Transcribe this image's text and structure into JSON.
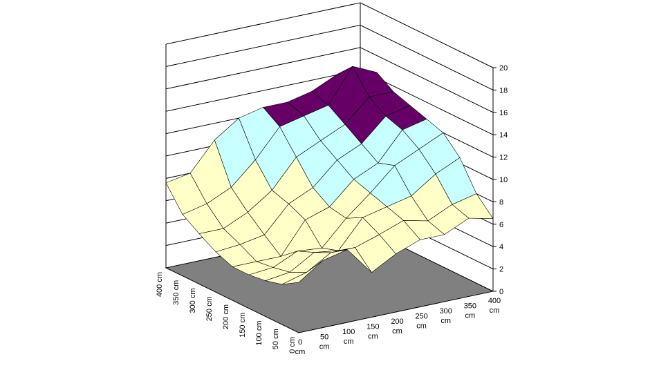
{
  "chart_data": {
    "type": "surface",
    "title": "",
    "xlabel": "",
    "ylabel": "",
    "zlabel": "",
    "x_ticks": [
      "0 cm",
      "50 cm",
      "100 cm",
      "150 cm",
      "200 cm",
      "250 cm",
      "300 cm",
      "350 cm",
      "400 cm"
    ],
    "y_ticks": [
      "0 cm",
      "50 cm",
      "100 cm",
      "150 cm",
      "200 cm",
      "250 cm",
      "300 cm",
      "350 cm",
      "400 cm"
    ],
    "z_ticks": [
      "0",
      "2",
      "4",
      "6",
      "8",
      "10",
      "12",
      "14",
      "16",
      "18",
      "20"
    ],
    "zlim": [
      0,
      20
    ],
    "grid": true,
    "legend": "none",
    "band_size": 4,
    "band_colors": [
      "#ffffc8",
      "#ffffc8",
      "#c8ffff",
      "#660066",
      "#ff8080",
      "#0066cc"
    ],
    "floor_color": "#808080",
    "values": [
      [
        4.5,
        3.6,
        3.2,
        3.0,
        3.0,
        3.6,
        4.5,
        5.5,
        7.6
      ],
      [
        6.0,
        4.2,
        3.5,
        3.2,
        3.0,
        3.8,
        4.5,
        6.0,
        8.0
      ],
      [
        6.5,
        5.5,
        4.8,
        4.2,
        3.0,
        4.2,
        5.5,
        7.0,
        10.5
      ],
      [
        4.0,
        5.5,
        4.5,
        4.0,
        5.8,
        6.5,
        7.0,
        9.0,
        12.0
      ],
      [
        5.2,
        6.2,
        7.0,
        6.2,
        6.5,
        7.5,
        9.5,
        11.5,
        12.5
      ],
      [
        6.0,
        7.0,
        7.5,
        8.0,
        8.5,
        9.5,
        10.5,
        12.0,
        12.5
      ],
      [
        6.0,
        6.5,
        8.0,
        10.0,
        9.5,
        10.5,
        11.5,
        12.5,
        13.0
      ],
      [
        7.0,
        7.5,
        9.5,
        11.0,
        12.0,
        12.5,
        13.5,
        15.5,
        14.0
      ],
      [
        6.5,
        8.0,
        10.5,
        12.0,
        12.5,
        13.0,
        13.5,
        14.5,
        13.0
      ]
    ]
  }
}
